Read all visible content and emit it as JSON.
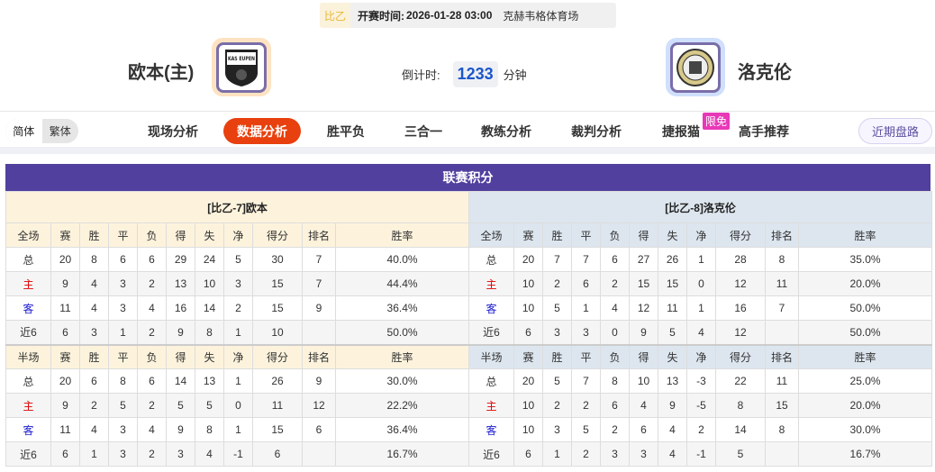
{
  "match": {
    "league": "比乙",
    "time_label": "开赛时间:",
    "time": "2026-01-28 03:00",
    "venue": "克赫韦格体育场",
    "home": "欧本(主)",
    "away": "洛克伦",
    "countdown_label": "倒计时:",
    "countdown": "1233",
    "countdown_unit": "分钟",
    "home_logo_text": "KAS EUPEN"
  },
  "nav": {
    "lang": [
      "简体",
      "繁体"
    ],
    "items": [
      "现场分析",
      "数据分析",
      "胜平负",
      "三合一",
      "教练分析",
      "裁判分析",
      "捷报猫",
      "高手推荐"
    ],
    "active": "数据分析",
    "badge": "限免",
    "recent": "近期盘路"
  },
  "colors": {
    "accent": "#e8400e",
    "title_bar": "#51409e",
    "home": "#e00000",
    "away": "#1a1ad0"
  },
  "standings": {
    "title": "联赛积分",
    "columns": [
      "赛",
      "胜",
      "平",
      "负",
      "得",
      "失",
      "净",
      "得分",
      "排名",
      "胜率"
    ],
    "teams": [
      {
        "name": "[比乙-7]欧本",
        "full_label": "全场",
        "half_label": "半场",
        "full": [
          [
            "总",
            "20",
            "8",
            "6",
            "6",
            "29",
            "24",
            "5",
            "30",
            "7",
            "40.0%"
          ],
          [
            "主",
            "9",
            "4",
            "3",
            "2",
            "13",
            "10",
            "3",
            "15",
            "7",
            "44.4%"
          ],
          [
            "客",
            "11",
            "4",
            "3",
            "4",
            "16",
            "14",
            "2",
            "15",
            "9",
            "36.4%"
          ],
          [
            "近6",
            "6",
            "3",
            "1",
            "2",
            "9",
            "8",
            "1",
            "10",
            "",
            "50.0%"
          ]
        ],
        "half": [
          [
            "总",
            "20",
            "6",
            "8",
            "6",
            "14",
            "13",
            "1",
            "26",
            "9",
            "30.0%"
          ],
          [
            "主",
            "9",
            "2",
            "5",
            "2",
            "5",
            "5",
            "0",
            "11",
            "12",
            "22.2%"
          ],
          [
            "客",
            "11",
            "4",
            "3",
            "4",
            "9",
            "8",
            "1",
            "15",
            "6",
            "36.4%"
          ],
          [
            "近6",
            "6",
            "1",
            "3",
            "2",
            "3",
            "4",
            "-1",
            "6",
            "",
            "16.7%"
          ]
        ]
      },
      {
        "name": "[比乙-8]洛克伦",
        "full_label": "全场",
        "half_label": "半场",
        "full": [
          [
            "总",
            "20",
            "7",
            "7",
            "6",
            "27",
            "26",
            "1",
            "28",
            "8",
            "35.0%"
          ],
          [
            "主",
            "10",
            "2",
            "6",
            "2",
            "15",
            "15",
            "0",
            "12",
            "11",
            "20.0%"
          ],
          [
            "客",
            "10",
            "5",
            "1",
            "4",
            "12",
            "11",
            "1",
            "16",
            "7",
            "50.0%"
          ],
          [
            "近6",
            "6",
            "3",
            "3",
            "0",
            "9",
            "5",
            "4",
            "12",
            "",
            "50.0%"
          ]
        ],
        "half": [
          [
            "总",
            "20",
            "5",
            "7",
            "8",
            "10",
            "13",
            "-3",
            "22",
            "11",
            "25.0%"
          ],
          [
            "主",
            "10",
            "2",
            "2",
            "6",
            "4",
            "9",
            "-5",
            "8",
            "15",
            "20.0%"
          ],
          [
            "客",
            "10",
            "3",
            "5",
            "2",
            "6",
            "4",
            "2",
            "14",
            "8",
            "30.0%"
          ],
          [
            "近6",
            "6",
            "1",
            "2",
            "3",
            "3",
            "4",
            "-1",
            "5",
            "",
            "16.7%"
          ]
        ]
      }
    ]
  }
}
